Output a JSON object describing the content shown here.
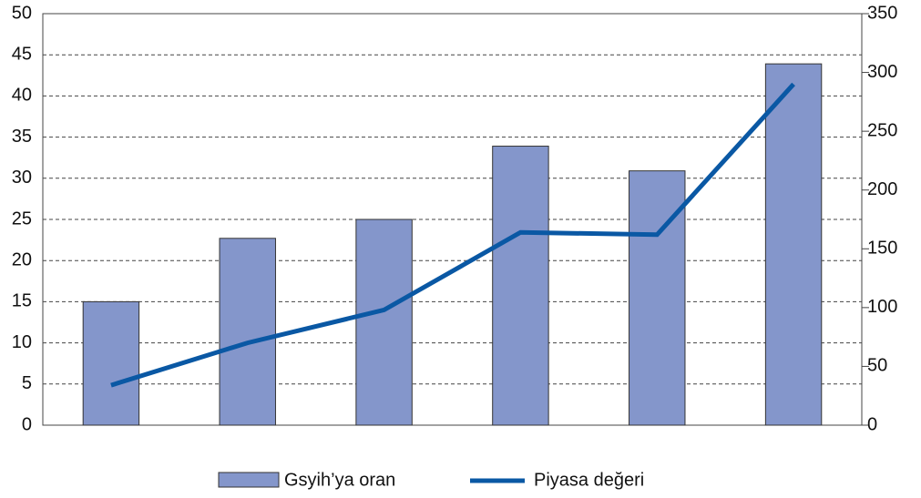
{
  "chart_data": {
    "type": "bar-line",
    "categories": [
      null,
      null,
      null,
      null,
      null,
      null
    ],
    "series": [
      {
        "name": "Gsyih’ya oran",
        "type": "bar",
        "color": "#8496cb",
        "values": [
          15,
          22.7,
          25,
          33.9,
          30.9,
          43.9
        ]
      },
      {
        "name": "Piyasa değeri",
        "type": "line",
        "color": "#0a58a4",
        "axis": "y2",
        "values": [
          34,
          70,
          98,
          164,
          162,
          290
        ]
      }
    ],
    "ylim": [
      0,
      50
    ],
    "yticks": [
      0,
      5,
      10,
      15,
      20,
      25,
      30,
      35,
      40,
      45,
      50
    ],
    "y2lim": [
      0,
      350
    ],
    "y2ticks": [
      0,
      50,
      100,
      150,
      200,
      250,
      300,
      350
    ],
    "grid": true,
    "legend": "bottom"
  }
}
